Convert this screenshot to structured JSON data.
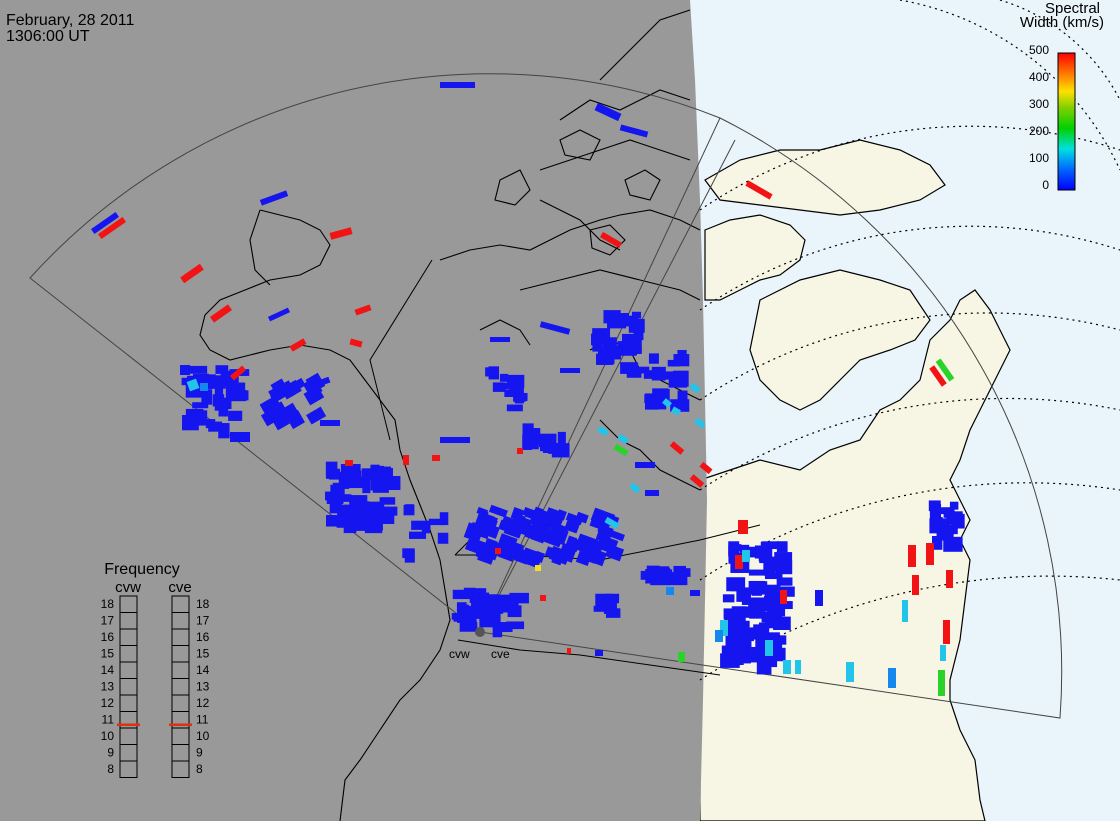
{
  "header": {
    "date": "February, 28 2011",
    "time": "1306:00 UT"
  },
  "colorbar": {
    "title_line1": "Spectral",
    "title_line2": "Width (km/s)",
    "ticks": [
      "500",
      "400",
      "300",
      "200",
      "100",
      "0"
    ]
  },
  "frequency_panel": {
    "title": "Frequency",
    "radars": [
      "cvw",
      "cve"
    ],
    "scale": [
      "18",
      "17",
      "16",
      "15",
      "14",
      "13",
      "12",
      "11",
      "10",
      "9",
      "8"
    ],
    "cvw_level_mhz": 10.7,
    "cve_level_mhz": 10.7
  },
  "radar_sites": {
    "west": "cvw",
    "east": "cve"
  },
  "map": {
    "night_color": "#999999",
    "land_color": "#f7f5e4",
    "ocean_color": "#e9f4fb",
    "scatter_colors": {
      "low": "#1515f0",
      "mid_low": "#1488ee",
      "cyan": "#22c4e9",
      "green": "#2ad22a",
      "yellow": "#f0e020",
      "high": "#f21414"
    }
  }
}
